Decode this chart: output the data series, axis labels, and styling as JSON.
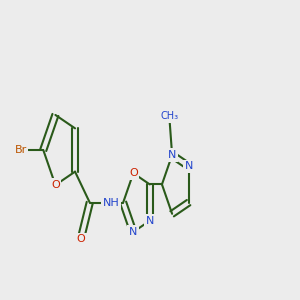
{
  "bg": "#ececec",
  "bond_color": "#2a5a1a",
  "atom_colors": {
    "C": "#2a5a1a",
    "O": "#cc2200",
    "N": "#2244cc",
    "Br": "#bb5500",
    "H": "#888899"
  },
  "font_size": 8.0,
  "lw": 1.5,
  "figsize": [
    3.0,
    3.0
  ],
  "dpi": 100
}
